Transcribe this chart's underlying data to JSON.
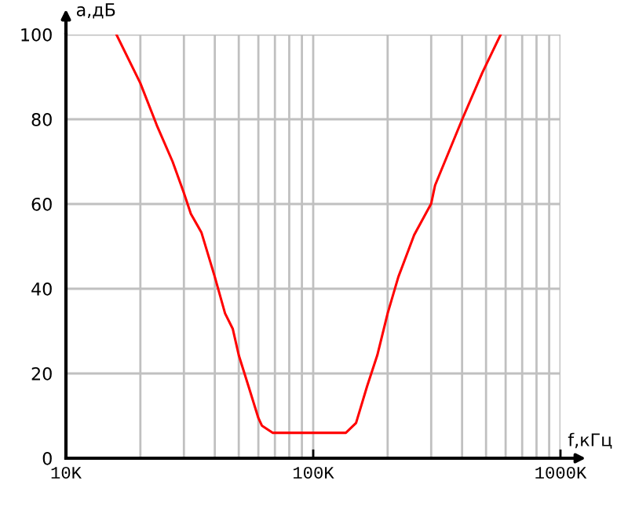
{
  "chart_data": {
    "type": "line",
    "xlabel": "f,кГц",
    "ylabel": "а,дБ",
    "log": "x",
    "x": [
      16.0,
      20,
      23.3,
      27.0,
      30,
      32.0,
      35.3,
      40,
      44.0,
      47.3,
      50,
      54.8,
      60,
      62.0,
      68.5,
      135.5,
      149,
      165,
      181.6,
      200,
      221,
      256,
      300,
      311,
      400,
      483,
      573
    ],
    "series": [
      {
        "color": "#ff0000",
        "values": [
          100,
          88.5,
          78.6,
          70,
          62.6,
          57.7,
          53.3,
          42.8,
          34.2,
          30.5,
          24.3,
          16.9,
          9.5,
          7.7,
          6,
          6,
          8.3,
          16.9,
          24.3,
          34.2,
          42.8,
          52.7,
          60.1,
          64.4,
          79.9,
          91,
          100
        ]
      }
    ],
    "xlim": [
      10,
      1000
    ],
    "ylim": [
      0,
      100
    ],
    "xticks": [
      {
        "value": 10,
        "label": "10K"
      },
      {
        "value": 100,
        "label": "100K"
      },
      {
        "value": 1000,
        "label": "1000K"
      }
    ],
    "yticks": [
      0,
      20,
      40,
      60,
      80,
      100
    ],
    "grid": true,
    "legend": false,
    "marker": "none",
    "line_style": "solid"
  }
}
